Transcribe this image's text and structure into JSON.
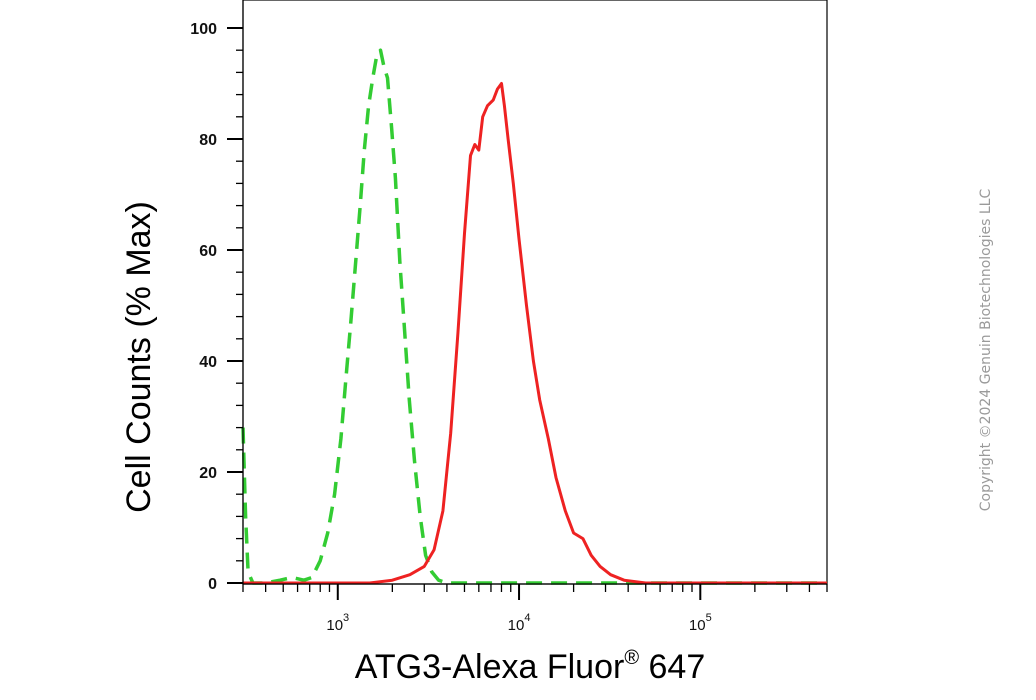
{
  "chart_data": {
    "type": "line",
    "title": "",
    "xlabel": "ATG3-Alexa Fluor",
    "xlabel_mark": "®",
    "xlabel_suffix": " 647",
    "ylabel": "Cell Counts (% Max)",
    "x_scale": "log",
    "xlim": [
      300,
      500000
    ],
    "ylim": [
      0,
      105
    ],
    "y_ticks": [
      0,
      20,
      40,
      60,
      80,
      100
    ],
    "x_ticks": [
      {
        "base": "10",
        "exp": "3",
        "value": 1000
      },
      {
        "base": "10",
        "exp": "4",
        "value": 10000
      },
      {
        "base": "10",
        "exp": "5",
        "value": 100000
      }
    ],
    "grid": false,
    "series": [
      {
        "color": "#33cc33",
        "style": "dashed",
        "points": [
          [
            300,
            28
          ],
          [
            310,
            12
          ],
          [
            320,
            2
          ],
          [
            340,
            0
          ],
          [
            400,
            0
          ],
          [
            480,
            0.5
          ],
          [
            560,
            1
          ],
          [
            650,
            0.5
          ],
          [
            720,
            1
          ],
          [
            800,
            4
          ],
          [
            880,
            9
          ],
          [
            960,
            16
          ],
          [
            1040,
            26
          ],
          [
            1110,
            37
          ],
          [
            1180,
            47
          ],
          [
            1250,
            57
          ],
          [
            1330,
            68
          ],
          [
            1400,
            78
          ],
          [
            1480,
            86
          ],
          [
            1560,
            91
          ],
          [
            1640,
            95
          ],
          [
            1720,
            96
          ],
          [
            1800,
            93
          ],
          [
            1880,
            91
          ],
          [
            1980,
            82
          ],
          [
            2080,
            73
          ],
          [
            2200,
            58
          ],
          [
            2330,
            46
          ],
          [
            2480,
            33
          ],
          [
            2650,
            22
          ],
          [
            2850,
            12
          ],
          [
            3050,
            5
          ],
          [
            3300,
            2
          ],
          [
            3600,
            0.5
          ],
          [
            4000,
            0
          ],
          [
            6000,
            0
          ],
          [
            10000,
            0
          ],
          [
            20000,
            0
          ],
          [
            30000,
            0
          ],
          [
            50000,
            0
          ],
          [
            100000,
            0
          ],
          [
            500000,
            0
          ]
        ]
      },
      {
        "color": "#ee2222",
        "style": "solid",
        "points": [
          [
            300,
            0
          ],
          [
            1000,
            0
          ],
          [
            1500,
            0
          ],
          [
            2000,
            0.5
          ],
          [
            2500,
            1.5
          ],
          [
            3000,
            3
          ],
          [
            3400,
            6
          ],
          [
            3800,
            13
          ],
          [
            4200,
            27
          ],
          [
            4600,
            45
          ],
          [
            5000,
            63
          ],
          [
            5400,
            77
          ],
          [
            5700,
            79
          ],
          [
            6000,
            78
          ],
          [
            6300,
            84
          ],
          [
            6700,
            86
          ],
          [
            7200,
            87
          ],
          [
            7600,
            89
          ],
          [
            8000,
            90
          ],
          [
            8300,
            86
          ],
          [
            8700,
            80
          ],
          [
            9300,
            72
          ],
          [
            10000,
            62
          ],
          [
            11000,
            50
          ],
          [
            12000,
            40
          ],
          [
            13000,
            33
          ],
          [
            14500,
            26
          ],
          [
            16000,
            19
          ],
          [
            18000,
            13
          ],
          [
            20000,
            9
          ],
          [
            22500,
            8
          ],
          [
            25000,
            5
          ],
          [
            28000,
            3
          ],
          [
            32000,
            1.5
          ],
          [
            38000,
            0.5
          ],
          [
            50000,
            0
          ],
          [
            100000,
            0
          ],
          [
            500000,
            0
          ]
        ]
      }
    ]
  },
  "copyright": "Copyright ©2024 Genuin Biotechnologies LLC"
}
